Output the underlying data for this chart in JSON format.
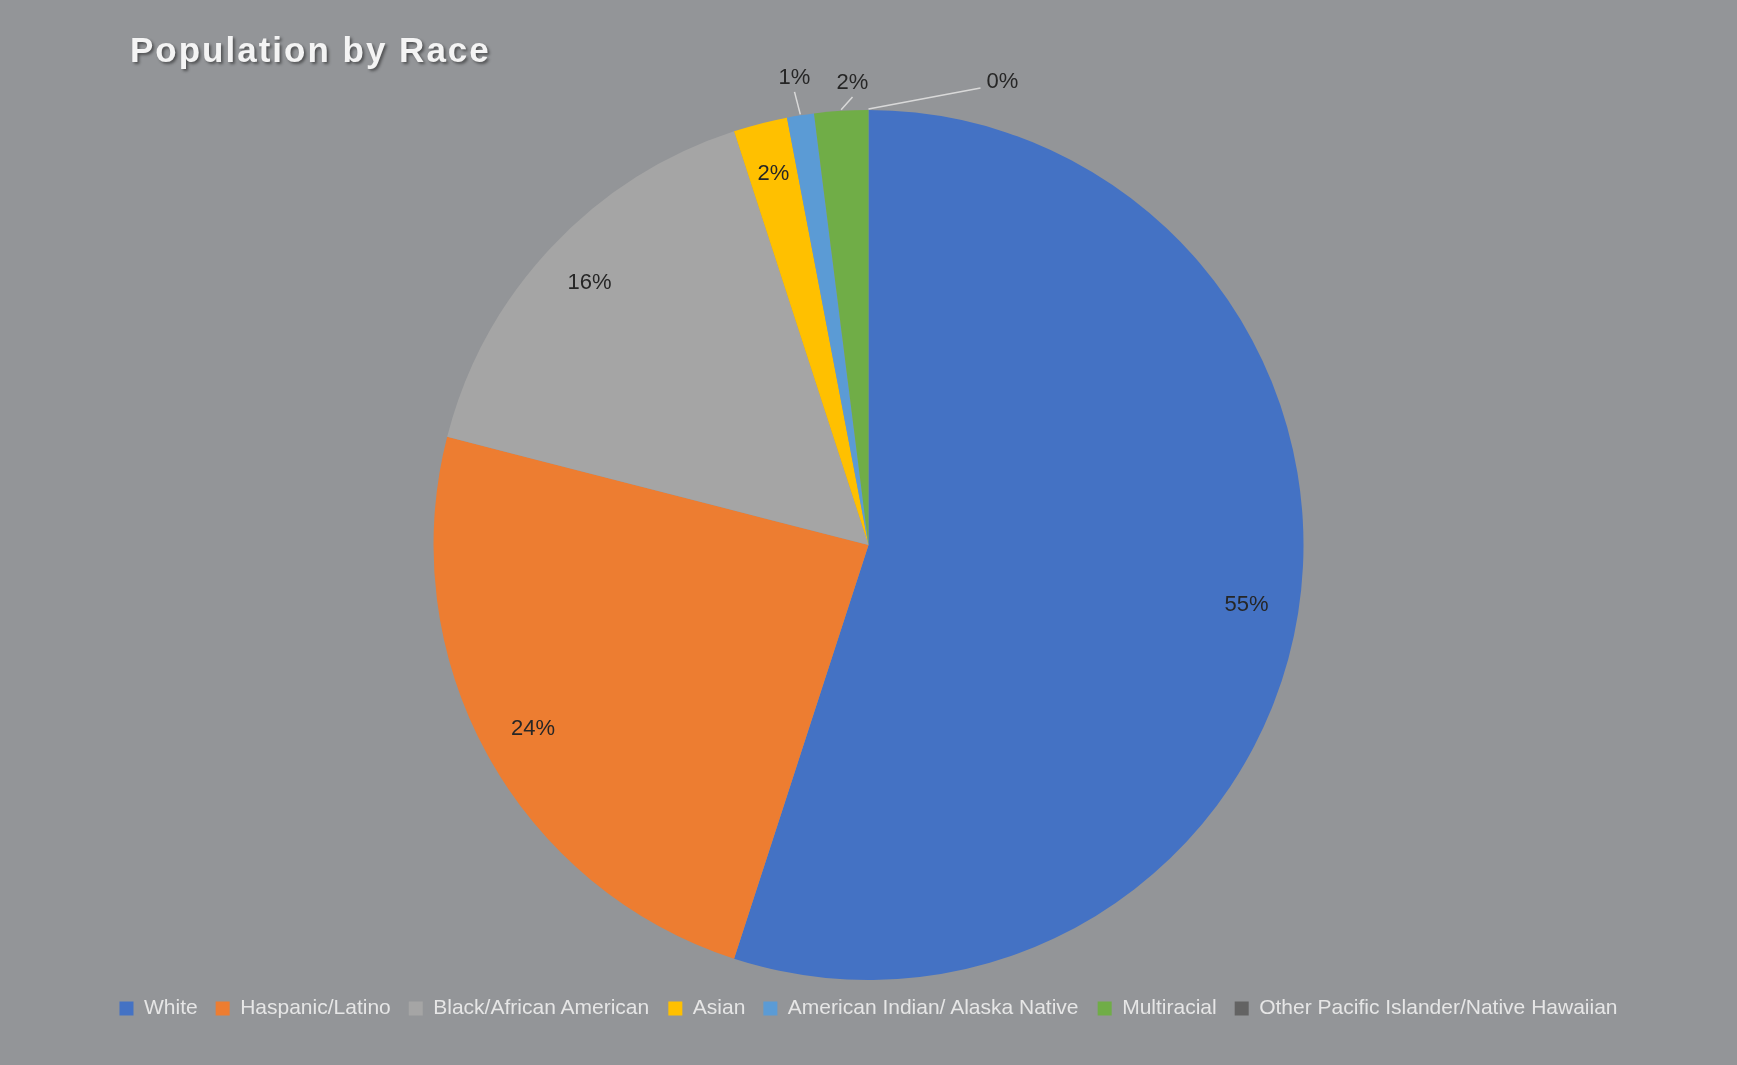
{
  "chart_data": {
    "type": "pie",
    "title": "Population by Race",
    "categories": [
      "White",
      "Haspanic/Latino",
      "Black/African American",
      "Asian",
      "American Indian/ Alaska Native",
      "Multiracial",
      "Other Pacific Islander/Native Hawaiian"
    ],
    "values": [
      55,
      24,
      16,
      2,
      1,
      2,
      0
    ],
    "value_labels": [
      "55%",
      "24%",
      "16%",
      "2%",
      "1%",
      "2%",
      "0%"
    ],
    "colors": [
      "#4472c4",
      "#ed7d31",
      "#a5a5a5",
      "#ffc000",
      "#5b9bd5",
      "#70ad47",
      "#636363"
    ],
    "legend": "bottom"
  }
}
